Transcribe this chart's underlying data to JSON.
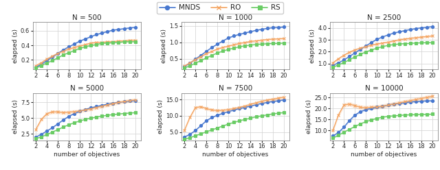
{
  "objectives": [
    2,
    3,
    4,
    5,
    6,
    7,
    8,
    9,
    10,
    11,
    12,
    13,
    14,
    15,
    16,
    17,
    18,
    19,
    20
  ],
  "panels": [
    {
      "title": "N = 500",
      "ylim": [
        0.07,
        0.72
      ],
      "yticks": [
        0.2,
        0.4,
        0.6
      ],
      "MNDS": [
        0.1,
        0.14,
        0.19,
        0.24,
        0.29,
        0.34,
        0.38,
        0.42,
        0.46,
        0.49,
        0.52,
        0.55,
        0.57,
        0.59,
        0.61,
        0.62,
        0.63,
        0.64,
        0.65
      ],
      "MNDS_lo": [
        0.09,
        0.13,
        0.18,
        0.23,
        0.28,
        0.33,
        0.37,
        0.41,
        0.45,
        0.48,
        0.51,
        0.54,
        0.56,
        0.58,
        0.6,
        0.61,
        0.62,
        0.63,
        0.64
      ],
      "MNDS_hi": [
        0.11,
        0.15,
        0.2,
        0.25,
        0.3,
        0.35,
        0.39,
        0.43,
        0.47,
        0.5,
        0.53,
        0.56,
        0.58,
        0.6,
        0.62,
        0.63,
        0.64,
        0.65,
        0.66
      ],
      "RO": [
        0.12,
        0.16,
        0.21,
        0.25,
        0.29,
        0.32,
        0.35,
        0.37,
        0.39,
        0.41,
        0.43,
        0.44,
        0.44,
        0.45,
        0.45,
        0.46,
        0.46,
        0.47,
        0.47
      ],
      "RO_lo": [
        0.1,
        0.14,
        0.19,
        0.23,
        0.27,
        0.3,
        0.33,
        0.35,
        0.37,
        0.39,
        0.41,
        0.42,
        0.42,
        0.43,
        0.43,
        0.44,
        0.44,
        0.45,
        0.45
      ],
      "RO_hi": [
        0.14,
        0.18,
        0.23,
        0.27,
        0.31,
        0.34,
        0.37,
        0.39,
        0.41,
        0.43,
        0.45,
        0.46,
        0.46,
        0.47,
        0.47,
        0.48,
        0.48,
        0.49,
        0.49
      ],
      "RS": [
        0.09,
        0.12,
        0.16,
        0.19,
        0.23,
        0.27,
        0.3,
        0.33,
        0.36,
        0.38,
        0.4,
        0.41,
        0.43,
        0.43,
        0.44,
        0.44,
        0.45,
        0.45,
        0.45
      ],
      "RS_lo": [
        0.08,
        0.11,
        0.15,
        0.18,
        0.22,
        0.26,
        0.29,
        0.32,
        0.35,
        0.37,
        0.39,
        0.4,
        0.42,
        0.42,
        0.43,
        0.43,
        0.44,
        0.44,
        0.44
      ],
      "RS_hi": [
        0.1,
        0.13,
        0.17,
        0.2,
        0.24,
        0.28,
        0.31,
        0.34,
        0.37,
        0.39,
        0.41,
        0.42,
        0.44,
        0.44,
        0.45,
        0.45,
        0.46,
        0.46,
        0.46
      ]
    },
    {
      "title": "N = 1000",
      "ylim": [
        0.18,
        1.62
      ],
      "yticks": [
        0.5,
        1.0,
        1.5
      ],
      "MNDS": [
        0.27,
        0.37,
        0.49,
        0.61,
        0.73,
        0.85,
        0.95,
        1.05,
        1.14,
        1.2,
        1.25,
        1.29,
        1.33,
        1.37,
        1.4,
        1.43,
        1.45,
        1.46,
        1.47
      ],
      "MNDS_lo": [
        0.25,
        0.35,
        0.47,
        0.59,
        0.71,
        0.83,
        0.93,
        1.03,
        1.12,
        1.18,
        1.23,
        1.27,
        1.31,
        1.35,
        1.38,
        1.41,
        1.43,
        1.44,
        1.45
      ],
      "MNDS_hi": [
        0.29,
        0.39,
        0.51,
        0.63,
        0.75,
        0.87,
        0.97,
        1.07,
        1.16,
        1.22,
        1.27,
        1.31,
        1.35,
        1.39,
        1.42,
        1.45,
        1.47,
        1.48,
        1.49
      ],
      "RO": [
        0.28,
        0.38,
        0.48,
        0.57,
        0.66,
        0.73,
        0.8,
        0.85,
        0.89,
        0.93,
        0.97,
        1.0,
        1.03,
        1.05,
        1.07,
        1.09,
        1.1,
        1.11,
        1.12
      ],
      "RO_lo": [
        0.25,
        0.35,
        0.45,
        0.54,
        0.63,
        0.7,
        0.77,
        0.82,
        0.86,
        0.9,
        0.94,
        0.97,
        1.0,
        1.02,
        1.04,
        1.06,
        1.07,
        1.08,
        1.09
      ],
      "RO_hi": [
        0.31,
        0.41,
        0.51,
        0.6,
        0.69,
        0.76,
        0.83,
        0.88,
        0.92,
        0.96,
        1.0,
        1.03,
        1.06,
        1.08,
        1.1,
        1.12,
        1.13,
        1.14,
        1.15
      ],
      "RS": [
        0.22,
        0.29,
        0.37,
        0.45,
        0.53,
        0.61,
        0.68,
        0.74,
        0.79,
        0.83,
        0.87,
        0.9,
        0.92,
        0.94,
        0.95,
        0.96,
        0.97,
        0.97,
        0.98
      ],
      "RS_lo": [
        0.2,
        0.27,
        0.35,
        0.43,
        0.51,
        0.59,
        0.66,
        0.72,
        0.77,
        0.81,
        0.85,
        0.88,
        0.9,
        0.92,
        0.93,
        0.94,
        0.95,
        0.95,
        0.96
      ],
      "RS_hi": [
        0.24,
        0.31,
        0.39,
        0.47,
        0.55,
        0.63,
        0.7,
        0.76,
        0.81,
        0.85,
        0.89,
        0.92,
        0.94,
        0.96,
        0.97,
        0.98,
        0.99,
        0.99,
        1.0
      ]
    },
    {
      "title": "N = 2500",
      "ylim": [
        0.5,
        4.5
      ],
      "yticks": [
        1.0,
        2.0,
        3.0,
        4.0
      ],
      "MNDS": [
        0.85,
        1.05,
        1.3,
        1.6,
        1.9,
        2.2,
        2.5,
        2.78,
        3.05,
        3.25,
        3.42,
        3.57,
        3.68,
        3.78,
        3.87,
        3.95,
        4.02,
        4.07,
        4.12
      ],
      "MNDS_lo": [
        0.8,
        1.0,
        1.25,
        1.55,
        1.85,
        2.15,
        2.45,
        2.73,
        3.0,
        3.2,
        3.37,
        3.52,
        3.63,
        3.73,
        3.82,
        3.9,
        3.97,
        4.02,
        4.07
      ],
      "MNDS_hi": [
        0.9,
        1.1,
        1.35,
        1.65,
        1.95,
        2.25,
        2.55,
        2.83,
        3.1,
        3.3,
        3.47,
        3.62,
        3.73,
        3.83,
        3.92,
        4.0,
        4.07,
        4.12,
        4.17
      ],
      "RO": [
        1.05,
        1.4,
        1.7,
        1.95,
        2.15,
        2.3,
        2.42,
        2.55,
        2.65,
        2.73,
        2.8,
        2.9,
        3.0,
        3.07,
        3.12,
        3.18,
        3.23,
        3.28,
        3.33
      ],
      "RO_lo": [
        0.95,
        1.3,
        1.6,
        1.85,
        2.05,
        2.2,
        2.32,
        2.45,
        2.55,
        2.63,
        2.7,
        2.8,
        2.9,
        2.97,
        3.02,
        3.08,
        3.13,
        3.18,
        3.23
      ],
      "RO_hi": [
        1.15,
        1.5,
        1.8,
        2.05,
        2.25,
        2.4,
        2.52,
        2.65,
        2.75,
        2.83,
        2.9,
        3.0,
        3.1,
        3.17,
        3.22,
        3.28,
        3.33,
        3.38,
        3.43
      ],
      "RS": [
        0.68,
        0.88,
        1.08,
        1.32,
        1.56,
        1.78,
        1.98,
        2.15,
        2.3,
        2.43,
        2.53,
        2.6,
        2.65,
        2.68,
        2.7,
        2.73,
        2.75,
        2.76,
        2.77
      ],
      "RS_lo": [
        0.63,
        0.83,
        1.03,
        1.27,
        1.51,
        1.73,
        1.93,
        2.1,
        2.25,
        2.38,
        2.48,
        2.55,
        2.6,
        2.63,
        2.65,
        2.68,
        2.7,
        2.71,
        2.72
      ],
      "RS_hi": [
        0.73,
        0.93,
        1.13,
        1.37,
        1.61,
        1.83,
        2.03,
        2.2,
        2.35,
        2.48,
        2.58,
        2.65,
        2.7,
        2.73,
        2.75,
        2.78,
        2.8,
        2.81,
        2.82
      ]
    },
    {
      "title": "N = 5000",
      "ylim": [
        1.5,
        9.0
      ],
      "yticks": [
        2.5,
        5.0,
        7.5
      ],
      "MNDS": [
        2.0,
        2.45,
        2.95,
        3.5,
        4.1,
        4.75,
        5.3,
        5.75,
        6.1,
        6.4,
        6.65,
        6.85,
        7.05,
        7.22,
        7.38,
        7.52,
        7.62,
        7.72,
        7.8
      ],
      "MNDS_lo": [
        1.9,
        2.35,
        2.85,
        3.4,
        4.0,
        4.65,
        5.2,
        5.65,
        6.0,
        6.3,
        6.55,
        6.75,
        6.95,
        7.12,
        7.28,
        7.42,
        7.52,
        7.62,
        7.7
      ],
      "MNDS_hi": [
        2.1,
        2.55,
        3.05,
        3.6,
        4.2,
        4.85,
        5.4,
        5.85,
        6.2,
        6.5,
        6.75,
        6.95,
        7.15,
        7.32,
        7.48,
        7.62,
        7.72,
        7.82,
        7.9
      ],
      "RO": [
        3.2,
        4.8,
        5.7,
        6.0,
        6.0,
        5.9,
        5.95,
        6.05,
        6.15,
        6.3,
        6.5,
        6.7,
        6.9,
        7.1,
        7.3,
        7.5,
        7.65,
        7.8,
        7.9
      ],
      "RO_lo": [
        2.9,
        4.5,
        5.4,
        5.7,
        5.7,
        5.6,
        5.65,
        5.75,
        5.85,
        6.0,
        6.2,
        6.4,
        6.6,
        6.8,
        7.0,
        7.2,
        7.35,
        7.5,
        7.6
      ],
      "RO_hi": [
        3.5,
        5.1,
        6.0,
        6.3,
        6.3,
        6.2,
        6.25,
        6.35,
        6.45,
        6.6,
        6.8,
        7.0,
        7.2,
        7.4,
        7.6,
        7.8,
        7.95,
        8.1,
        8.2
      ],
      "RS": [
        1.75,
        2.05,
        2.4,
        2.8,
        3.2,
        3.6,
        3.98,
        4.3,
        4.58,
        4.82,
        5.02,
        5.2,
        5.35,
        5.47,
        5.58,
        5.67,
        5.75,
        5.82,
        5.88
      ],
      "RS_lo": [
        1.65,
        1.95,
        2.3,
        2.7,
        3.1,
        3.5,
        3.88,
        4.2,
        4.48,
        4.72,
        4.92,
        5.1,
        5.25,
        5.37,
        5.48,
        5.57,
        5.65,
        5.72,
        5.78
      ],
      "RS_hi": [
        1.85,
        2.15,
        2.5,
        2.9,
        3.3,
        3.7,
        4.08,
        4.4,
        4.68,
        4.92,
        5.12,
        5.3,
        5.45,
        5.57,
        5.68,
        5.77,
        5.85,
        5.92,
        5.98
      ]
    },
    {
      "title": "N = 7500",
      "ylim": [
        2.5,
        17.0
      ],
      "yticks": [
        5.0,
        10.0,
        15.0
      ],
      "MNDS": [
        3.5,
        4.3,
        5.5,
        7.0,
        8.5,
        9.5,
        10.2,
        10.8,
        11.3,
        11.8,
        12.2,
        12.6,
        13.0,
        13.4,
        13.8,
        14.1,
        14.4,
        14.6,
        14.9
      ],
      "MNDS_lo": [
        3.3,
        4.1,
        5.3,
        6.8,
        8.3,
        9.3,
        10.0,
        10.6,
        11.1,
        11.6,
        12.0,
        12.4,
        12.8,
        13.2,
        13.6,
        13.9,
        14.2,
        14.4,
        14.7
      ],
      "MNDS_hi": [
        3.7,
        4.5,
        5.7,
        7.2,
        8.7,
        9.7,
        10.4,
        11.0,
        11.5,
        12.0,
        12.4,
        12.8,
        13.2,
        13.6,
        14.0,
        14.3,
        14.6,
        14.8,
        15.1
      ],
      "RO": [
        5.5,
        9.5,
        12.5,
        12.8,
        12.2,
        11.8,
        11.6,
        11.7,
        11.9,
        12.2,
        12.6,
        13.0,
        13.5,
        14.0,
        14.4,
        14.8,
        15.1,
        15.4,
        15.7
      ],
      "RO_lo": [
        5.0,
        9.0,
        12.0,
        12.3,
        11.7,
        11.3,
        11.1,
        11.2,
        11.4,
        11.7,
        12.1,
        12.5,
        13.0,
        13.5,
        13.9,
        14.3,
        14.6,
        14.9,
        15.2
      ],
      "RO_hi": [
        6.0,
        10.0,
        13.0,
        13.3,
        12.7,
        12.3,
        12.1,
        12.2,
        12.4,
        12.7,
        13.1,
        13.5,
        14.0,
        14.5,
        14.9,
        15.3,
        15.6,
        15.9,
        16.2
      ],
      "RS": [
        2.8,
        3.3,
        3.9,
        4.5,
        5.1,
        5.7,
        6.3,
        6.9,
        7.5,
        8.0,
        8.5,
        8.9,
        9.3,
        9.7,
        10.0,
        10.3,
        10.6,
        10.8,
        11.0
      ],
      "RS_lo": [
        2.6,
        3.1,
        3.7,
        4.3,
        4.9,
        5.5,
        6.1,
        6.7,
        7.3,
        7.8,
        8.3,
        8.7,
        9.1,
        9.5,
        9.8,
        10.1,
        10.4,
        10.6,
        10.8
      ],
      "RS_hi": [
        3.0,
        3.5,
        4.1,
        4.7,
        5.3,
        5.9,
        6.5,
        7.1,
        7.7,
        8.2,
        8.7,
        9.1,
        9.5,
        9.9,
        10.2,
        10.5,
        10.8,
        11.0,
        11.2
      ]
    },
    {
      "title": "N = 10000",
      "ylim": [
        5.5,
        27.0
      ],
      "yticks": [
        10.0,
        15.0,
        20.0,
        25.0
      ],
      "MNDS": [
        7.5,
        9.0,
        11.5,
        14.5,
        17.0,
        18.5,
        19.5,
        20.0,
        20.5,
        21.0,
        21.5,
        22.0,
        22.3,
        22.6,
        22.9,
        23.1,
        23.3,
        23.4,
        23.5
      ],
      "MNDS_lo": [
        7.0,
        8.5,
        11.0,
        14.0,
        16.5,
        18.0,
        19.0,
        19.5,
        20.0,
        20.5,
        21.0,
        21.5,
        21.8,
        22.1,
        22.4,
        22.6,
        22.8,
        22.9,
        23.0
      ],
      "MNDS_hi": [
        8.0,
        9.5,
        12.0,
        15.0,
        17.5,
        19.0,
        20.0,
        20.5,
        21.0,
        21.5,
        22.0,
        22.5,
        22.8,
        23.1,
        23.4,
        23.6,
        23.8,
        23.9,
        24.0
      ],
      "RO": [
        10.0,
        17.0,
        21.5,
        22.0,
        21.2,
        20.5,
        20.3,
        20.5,
        20.7,
        21.0,
        21.5,
        22.0,
        22.5,
        23.0,
        23.5,
        24.0,
        24.5,
        25.0,
        25.5
      ],
      "RO_lo": [
        9.0,
        16.0,
        20.5,
        21.0,
        20.2,
        19.5,
        19.3,
        19.5,
        19.7,
        20.0,
        20.5,
        21.0,
        21.5,
        22.0,
        22.5,
        23.0,
        23.5,
        24.0,
        24.5
      ],
      "RO_hi": [
        11.0,
        18.0,
        22.5,
        23.0,
        22.2,
        21.5,
        21.3,
        21.5,
        21.7,
        22.0,
        22.5,
        23.0,
        23.5,
        24.0,
        24.5,
        25.0,
        25.5,
        26.0,
        26.5
      ],
      "RS": [
        6.5,
        7.8,
        9.2,
        10.5,
        11.8,
        13.0,
        14.0,
        14.8,
        15.5,
        16.0,
        16.4,
        16.6,
        16.8,
        17.0,
        17.1,
        17.2,
        17.3,
        17.3,
        17.4
      ],
      "RS_lo": [
        6.2,
        7.5,
        8.9,
        10.2,
        11.5,
        12.7,
        13.7,
        14.5,
        15.2,
        15.7,
        16.1,
        16.3,
        16.5,
        16.7,
        16.8,
        16.9,
        17.0,
        17.0,
        17.1
      ],
      "RS_hi": [
        6.8,
        8.1,
        9.5,
        10.8,
        12.1,
        13.3,
        14.3,
        15.1,
        15.8,
        16.3,
        16.7,
        16.9,
        17.1,
        17.3,
        17.4,
        17.5,
        17.6,
        17.6,
        17.7
      ]
    }
  ],
  "colors": {
    "MNDS": "#4878cf",
    "RO": "#f4a461",
    "RS": "#6acc65"
  },
  "markers": {
    "MNDS": "o",
    "RO": "x",
    "RS": "s"
  },
  "xlabel": "number of objectives",
  "ylabel": "elapsed (s)"
}
